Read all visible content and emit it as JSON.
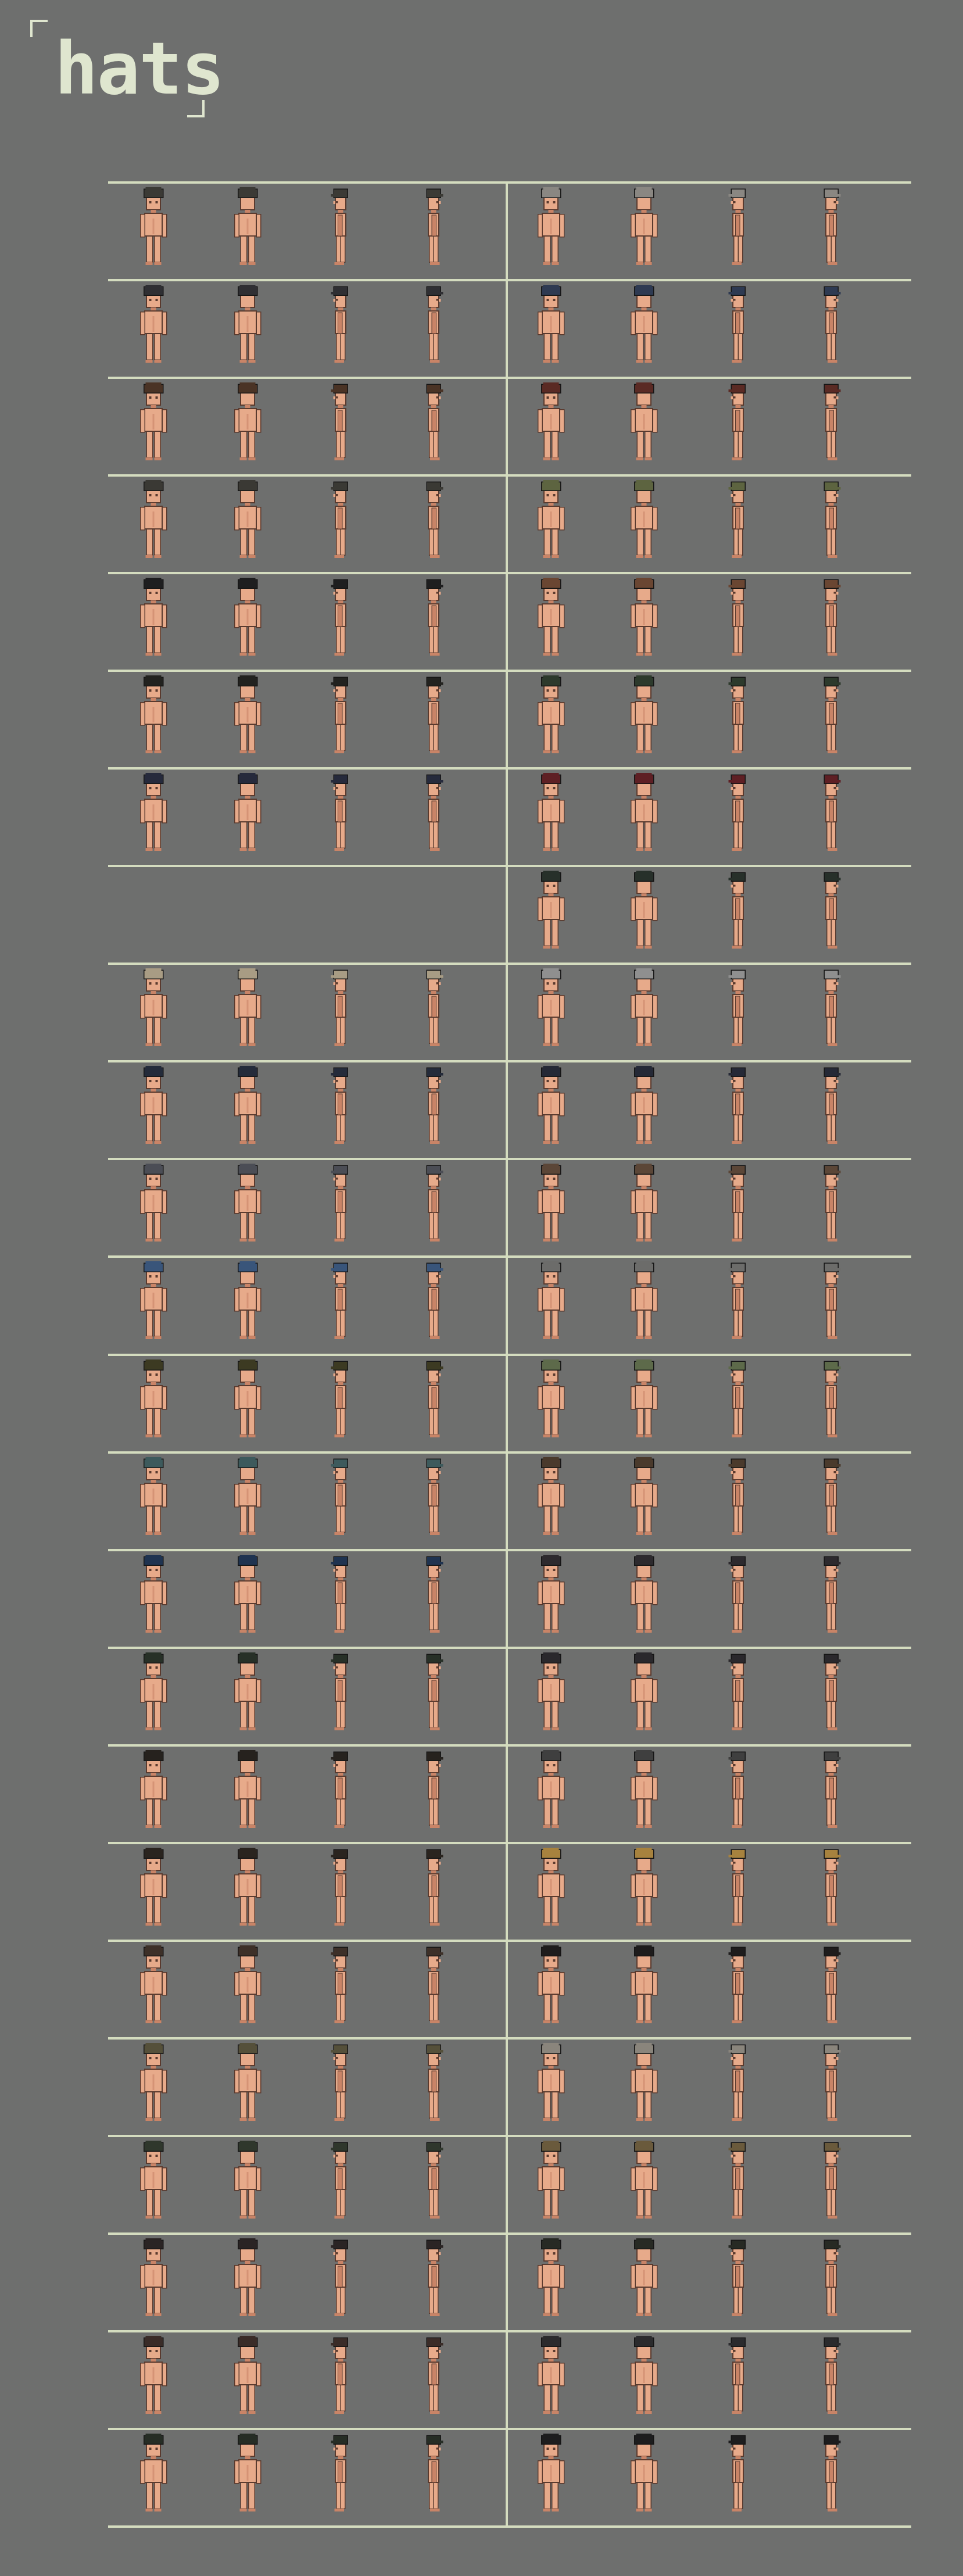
{
  "title": "hats",
  "colors": {
    "background": "#6e6f6e",
    "grid_line": "#d4dcbf",
    "title_text": "#dfe6cf",
    "skin": "#e7aa8a",
    "skin_shade": "#c98467",
    "outline": "#5a3a2e"
  },
  "sprite_views": [
    "front",
    "back",
    "side-left",
    "side-right"
  ],
  "rows": [
    {
      "left": {
        "hat": "dark-cap",
        "color": "#3b3a35"
      },
      "right": {
        "hat": "gray-cap",
        "color": "#8a8782"
      }
    },
    {
      "left": {
        "hat": "headband-visor",
        "color": "#2f2f33"
      },
      "right": {
        "hat": "blue-beret",
        "color": "#2e3a52"
      }
    },
    {
      "left": {
        "hat": "brown-fedora",
        "color": "#4a3325"
      },
      "right": {
        "hat": "red-brown-fedora",
        "color": "#5a2a24"
      }
    },
    {
      "left": {
        "hat": "dark-bowler",
        "color": "#3a3934"
      },
      "right": {
        "hat": "olive-bucket-hat",
        "color": "#5d6440"
      }
    },
    {
      "left": {
        "hat": "black-cap",
        "color": "#1e1e1f"
      },
      "right": {
        "hat": "brown-cowboy-hat",
        "color": "#6a4632"
      }
    },
    {
      "left": {
        "hat": "black-wide-brim",
        "color": "#22221f"
      },
      "right": {
        "hat": "green-wide-brim",
        "color": "#2d3a2c"
      }
    },
    {
      "left": {
        "hat": "navy-hood",
        "color": "#262a3c"
      },
      "right": {
        "hat": "maroon-hood",
        "color": "#5e1f24"
      }
    },
    {
      "left": null,
      "right": {
        "hat": "dark-green-hood",
        "color": "#27302a"
      }
    },
    {
      "left": {
        "hat": "beige-cap",
        "color": "#a89c84"
      },
      "right": {
        "hat": "light-gray-cap",
        "color": "#8f8f8f"
      }
    },
    {
      "left": {
        "hat": "navy-beret",
        "color": "#242b3a"
      },
      "right": {
        "hat": "dark-navy-beret",
        "color": "#252936"
      }
    },
    {
      "left": {
        "hat": "steel-helmet",
        "color": "#4b4d55"
      },
      "right": {
        "hat": "brown-cap",
        "color": "#5b4637"
      }
    },
    {
      "left": {
        "hat": "blue-beanie",
        "color": "#39557a"
      },
      "right": {
        "hat": "gray-beanie",
        "color": "#6c6c6a"
      }
    },
    {
      "left": {
        "hat": "olive-hood",
        "color": "#3c3a22"
      },
      "right": {
        "hat": "camo-bandana",
        "color": "#5d6a4a"
      }
    },
    {
      "left": {
        "hat": "teal-cap",
        "color": "#3d5a5c"
      },
      "right": {
        "hat": "brown-hood",
        "color": "#4a3a2c"
      }
    },
    {
      "left": {
        "hat": "blue-horned-cap",
        "color": "#1f3350"
      },
      "right": {
        "hat": "black-wild-hair",
        "color": "#2d2a2e"
      }
    },
    {
      "left": {
        "hat": "dark-green-cap",
        "color": "#273027"
      },
      "right": {
        "hat": "black-cat-ears",
        "color": "#2a282c"
      }
    },
    {
      "left": {
        "hat": "black-cowboy",
        "color": "#26221e"
      },
      "right": {
        "hat": "dark-gray-cap",
        "color": "#3f3f3f"
      }
    },
    {
      "left": {
        "hat": "black-pirate",
        "color": "#2a241f"
      },
      "right": {
        "hat": "straw-hat",
        "color": "#a7823e"
      }
    },
    {
      "left": {
        "hat": "brown-cap-2",
        "color": "#3d3028"
      },
      "right": {
        "hat": "black-tricorn",
        "color": "#1e1c1c"
      }
    },
    {
      "left": {
        "hat": "olive-fedora",
        "color": "#55503a"
      },
      "right": {
        "hat": "stone-cap",
        "color": "#8a857c"
      }
    },
    {
      "left": {
        "hat": "dark-olive-cap",
        "color": "#2f372c"
      },
      "right": {
        "hat": "khaki-cap",
        "color": "#6a5a3c"
      }
    },
    {
      "left": {
        "hat": "long-hair",
        "color": "#2a2424"
      },
      "right": {
        "hat": "long-hair-dark",
        "color": "#272a24"
      }
    },
    {
      "left": {
        "hat": "long-hair-brown",
        "color": "#3a2c28"
      },
      "right": {
        "hat": "goggles",
        "color": "#2b2b2d"
      }
    },
    {
      "left": {
        "hat": "dark-green-helmet",
        "color": "#262d25"
      },
      "right": {
        "hat": "black-helmet",
        "color": "#1d1d1e"
      }
    }
  ]
}
